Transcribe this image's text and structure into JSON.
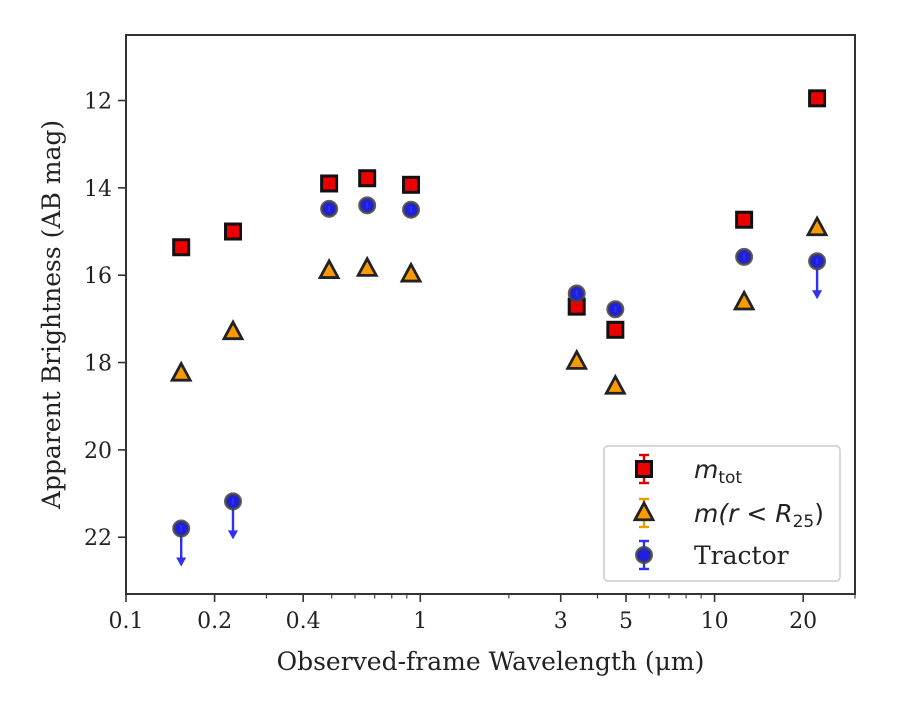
{
  "chart_data": {
    "type": "scatter",
    "xlabel": "Observed-frame Wavelength (μm)",
    "ylabel": "Apparent Brightness (AB mag)",
    "xscale": "log",
    "xlim": [
      0.1,
      30
    ],
    "ylim": [
      23.3,
      10.5
    ],
    "y_inverted": true,
    "x_ticks": [
      {
        "value": 0.1,
        "label": "0.1"
      },
      {
        "value": 0.2,
        "label": "0.2"
      },
      {
        "value": 0.4,
        "label": "0.4"
      },
      {
        "value": 1,
        "label": "1"
      },
      {
        "value": 3,
        "label": "3"
      },
      {
        "value": 5,
        "label": "5"
      },
      {
        "value": 10,
        "label": "10"
      },
      {
        "value": 20,
        "label": "20"
      }
    ],
    "y_ticks": [
      {
        "value": 12,
        "label": "12"
      },
      {
        "value": 14,
        "label": "14"
      },
      {
        "value": 16,
        "label": "16"
      },
      {
        "value": 18,
        "label": "18"
      },
      {
        "value": 20,
        "label": "20"
      },
      {
        "value": 22,
        "label": "22"
      }
    ],
    "grid": false,
    "legend_position": "lower-right",
    "series": [
      {
        "name": "m_tot",
        "legend_label": "m",
        "legend_sub": "tot",
        "marker": "square",
        "fill": "#ee0000",
        "edge": "#111111",
        "errcolor": "#dd0000",
        "x": [
          0.154,
          0.231,
          0.49,
          0.66,
          0.93,
          3.4,
          4.6,
          12.6,
          22.3
        ],
        "y": [
          15.36,
          15.0,
          13.9,
          13.78,
          13.93,
          16.72,
          17.25,
          14.73,
          11.95
        ]
      },
      {
        "name": "m(r < R25)",
        "legend_label": "m(r < R",
        "legend_sub": "25",
        "legend_suffix": ")",
        "marker": "triangle",
        "fill": "#ff9900",
        "edge": "#222222",
        "errcolor": "#e8a000",
        "x": [
          0.154,
          0.231,
          0.49,
          0.66,
          0.93,
          3.4,
          4.6,
          12.6,
          22.3
        ],
        "y": [
          18.25,
          17.3,
          15.9,
          15.85,
          15.98,
          17.98,
          18.55,
          16.62,
          14.92
        ]
      },
      {
        "name": "Tractor",
        "legend_label": "Tractor",
        "marker": "circle",
        "fill": "#1f1fe0",
        "edge": "#444444",
        "errcolor": "#3030f0",
        "x": [
          0.154,
          0.231,
          0.49,
          0.66,
          0.93,
          3.4,
          4.6,
          12.6,
          22.3
        ],
        "y": [
          21.8,
          21.18,
          14.48,
          14.4,
          14.5,
          16.42,
          16.78,
          15.58,
          15.68
        ],
        "upper_limits": [
          true,
          true,
          false,
          false,
          false,
          false,
          false,
          false,
          true
        ]
      }
    ]
  }
}
